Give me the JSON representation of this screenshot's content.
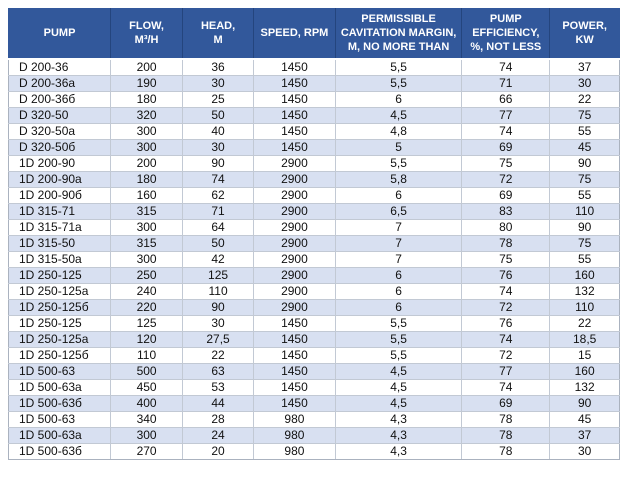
{
  "colors": {
    "header_bg": "#32589b",
    "stripe": "#d8e0f1",
    "grid": "#c2c9d4",
    "header_text": "#ffffff",
    "body_text": "#111111"
  },
  "table": {
    "columns": [
      {
        "key": "pump",
        "label": "PUMP"
      },
      {
        "key": "flow",
        "label": "FLOW,\nM³/H"
      },
      {
        "key": "head",
        "label": "HEAD,\nM"
      },
      {
        "key": "speed",
        "label": "SPEED, RPM"
      },
      {
        "key": "cavitation",
        "label": "PERMISSIBLE\nCAVITATION MARGIN,\nM, NO MORE THAN"
      },
      {
        "key": "efficiency",
        "label": "PUMP\nEFFICIENCY,\n%, NOT LESS"
      },
      {
        "key": "power",
        "label": "POWER,\nKW"
      }
    ],
    "rows": [
      [
        "D 200-36",
        "200",
        "36",
        "1450",
        "5,5",
        "74",
        "37"
      ],
      [
        "D 200-36a",
        "190",
        "30",
        "1450",
        "5,5",
        "71",
        "30"
      ],
      [
        "D 200-36б",
        "180",
        "25",
        "1450",
        "6",
        "66",
        "22"
      ],
      [
        "D 320-50",
        "320",
        "50",
        "1450",
        "4,5",
        "77",
        "75"
      ],
      [
        "D 320-50a",
        "300",
        "40",
        "1450",
        "4,8",
        "74",
        "55"
      ],
      [
        "D 320-50б",
        "300",
        "30",
        "1450",
        "5",
        "69",
        "45"
      ],
      [
        "1D 200-90",
        "200",
        "90",
        "2900",
        "5,5",
        "75",
        "90"
      ],
      [
        "1D 200-90a",
        "180",
        "74",
        "2900",
        "5,8",
        "72",
        "75"
      ],
      [
        "1D 200-90б",
        "160",
        "62",
        "2900",
        "6",
        "69",
        "55"
      ],
      [
        "1D 315-71",
        "315",
        "71",
        "2900",
        "6,5",
        "83",
        "110"
      ],
      [
        "1D 315-71a",
        "300",
        "64",
        "2900",
        "7",
        "80",
        "90"
      ],
      [
        "1D 315-50",
        "315",
        "50",
        "2900",
        "7",
        "78",
        "75"
      ],
      [
        "1D 315-50a",
        "300",
        "42",
        "2900",
        "7",
        "75",
        "55"
      ],
      [
        "1D 250-125",
        "250",
        "125",
        "2900",
        "6",
        "76",
        "160"
      ],
      [
        "1D 250-125a",
        "240",
        "110",
        "2900",
        "6",
        "74",
        "132"
      ],
      [
        "1D 250-125б",
        "220",
        "90",
        "2900",
        "6",
        "72",
        "110"
      ],
      [
        "1D 250-125",
        "125",
        "30",
        "1450",
        "5,5",
        "76",
        "22"
      ],
      [
        "1D 250-125a",
        "120",
        "27,5",
        "1450",
        "5,5",
        "74",
        "18,5"
      ],
      [
        "1D 250-125б",
        "110",
        "22",
        "1450",
        "5,5",
        "72",
        "15"
      ],
      [
        "1D 500-63",
        "500",
        "63",
        "1450",
        "4,5",
        "77",
        "160"
      ],
      [
        "1D 500-63a",
        "450",
        "53",
        "1450",
        "4,5",
        "74",
        "132"
      ],
      [
        "1D 500-63б",
        "400",
        "44",
        "1450",
        "4,5",
        "69",
        "90"
      ],
      [
        "1D 500-63",
        "340",
        "28",
        "980",
        "4,3",
        "78",
        "45"
      ],
      [
        "1D 500-63a",
        "300",
        "24",
        "980",
        "4,3",
        "78",
        "37"
      ],
      [
        "1D 500-63б",
        "270",
        "20",
        "980",
        "4,3",
        "78",
        "30"
      ]
    ]
  }
}
